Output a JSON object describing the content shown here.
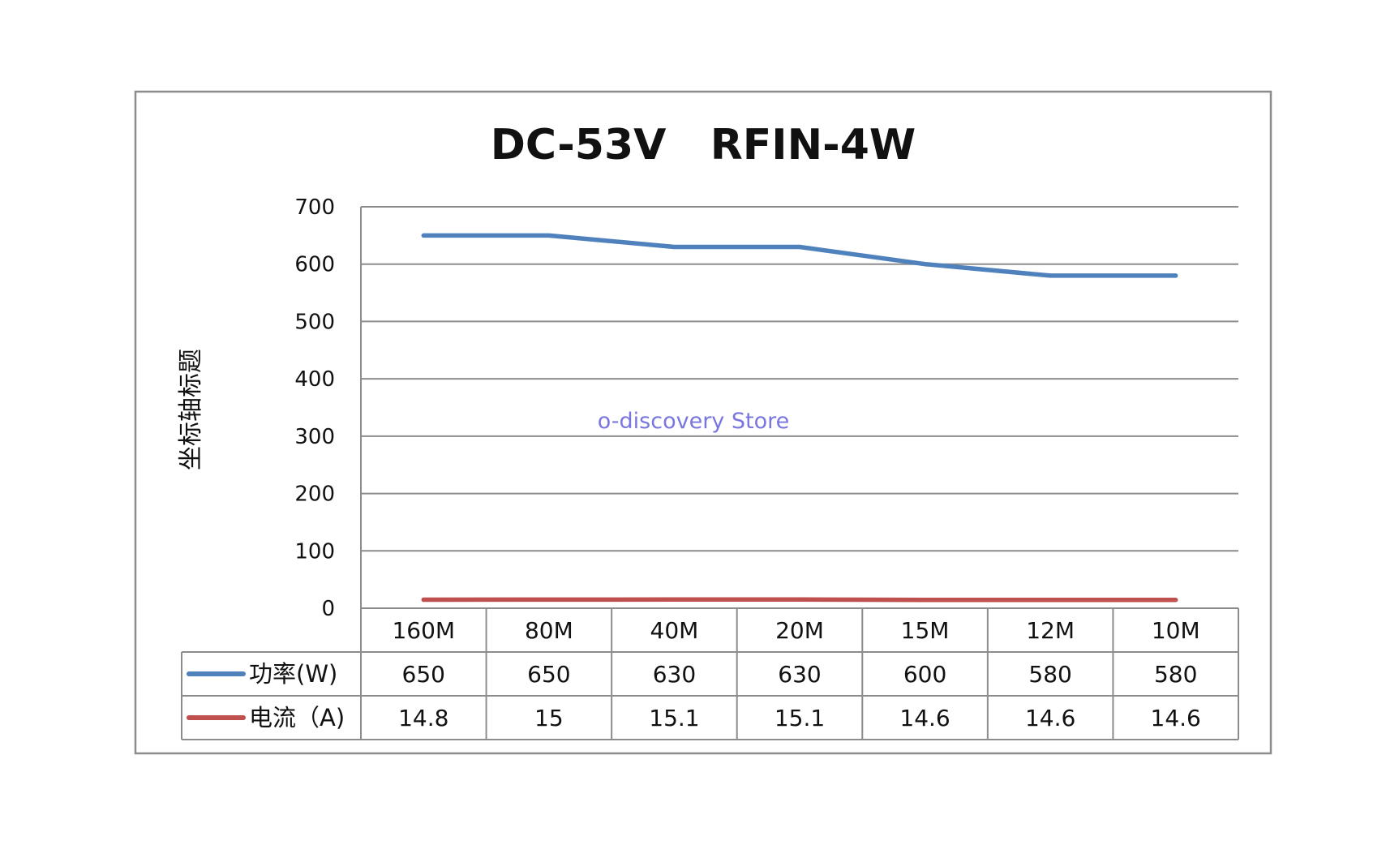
{
  "chart_data": {
    "type": "line",
    "title": "DC-53V   RFIN-4W",
    "ylabel": "坐标轴标题",
    "xlabel": "",
    "ylim": [
      0,
      700
    ],
    "yticks": [
      "0",
      "100",
      "200",
      "300",
      "400",
      "500",
      "600",
      "700"
    ],
    "grid": true,
    "categories": [
      "160M",
      "80M",
      "40M",
      "20M",
      "15M",
      "12M",
      "10M"
    ],
    "series": [
      {
        "name": "功率(W)",
        "color": "#4f81bd",
        "values": [
          650,
          650,
          630,
          630,
          600,
          580,
          580
        ],
        "labels": [
          "650",
          "650",
          "630",
          "630",
          "600",
          "580",
          "580"
        ]
      },
      {
        "name": "电流（A)",
        "color": "#c0504d",
        "values": [
          14.8,
          15,
          15.1,
          15.1,
          14.6,
          14.6,
          14.6
        ],
        "labels": [
          "14.8",
          "15",
          "15.1",
          "15.1",
          "14.6",
          "14.6",
          "14.6"
        ]
      }
    ],
    "legend": "data-table",
    "watermark": "o-discovery Store"
  }
}
